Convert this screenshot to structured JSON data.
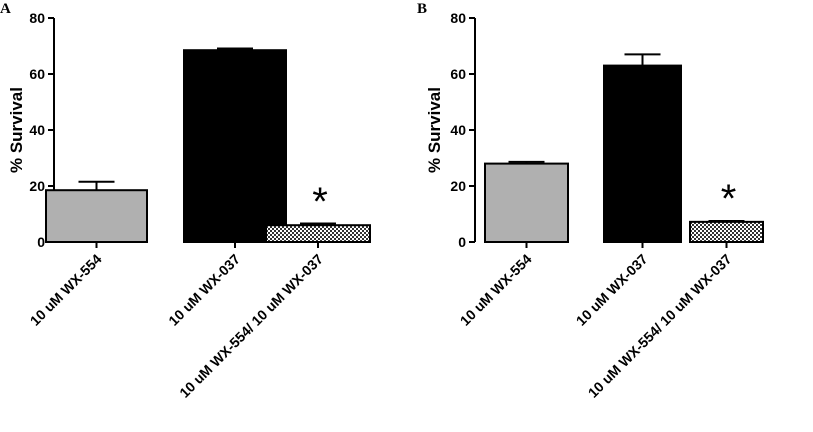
{
  "chart_data": [
    {
      "type": "bar",
      "panel_label": "A",
      "ylabel": "% Survival",
      "xlabel": "",
      "title": "",
      "ylim": [
        0,
        80
      ],
      "yticks": [
        "0",
        "20",
        "40",
        "60",
        "80"
      ],
      "categories": [
        "10 uM WX-554",
        "10 uM WX-037",
        "10 uM WX-554/ 10 uM WX-037"
      ],
      "values": [
        18.5,
        68.5,
        6.0
      ],
      "errors": [
        3.0,
        0.6,
        0.6
      ],
      "bar_colors": [
        "#b0b0b0",
        "#000000",
        "checker"
      ],
      "annotation": {
        "category_index": 2,
        "text": "*"
      }
    },
    {
      "type": "bar",
      "panel_label": "B",
      "ylabel": "% Survival",
      "xlabel": "",
      "title": "",
      "ylim": [
        0,
        80
      ],
      "yticks": [
        "0",
        "20",
        "40",
        "60",
        "80"
      ],
      "categories": [
        "10 uM WX-554",
        "10 uM WX-037",
        "10 uM WX-554/ 10 uM WX-037"
      ],
      "values": [
        28.0,
        63.0,
        7.2
      ],
      "errors": [
        0.6,
        4.0,
        0.3
      ],
      "bar_colors": [
        "#b0b0b0",
        "#000000",
        "checker"
      ],
      "annotation": {
        "category_index": 2,
        "text": "*"
      }
    }
  ]
}
